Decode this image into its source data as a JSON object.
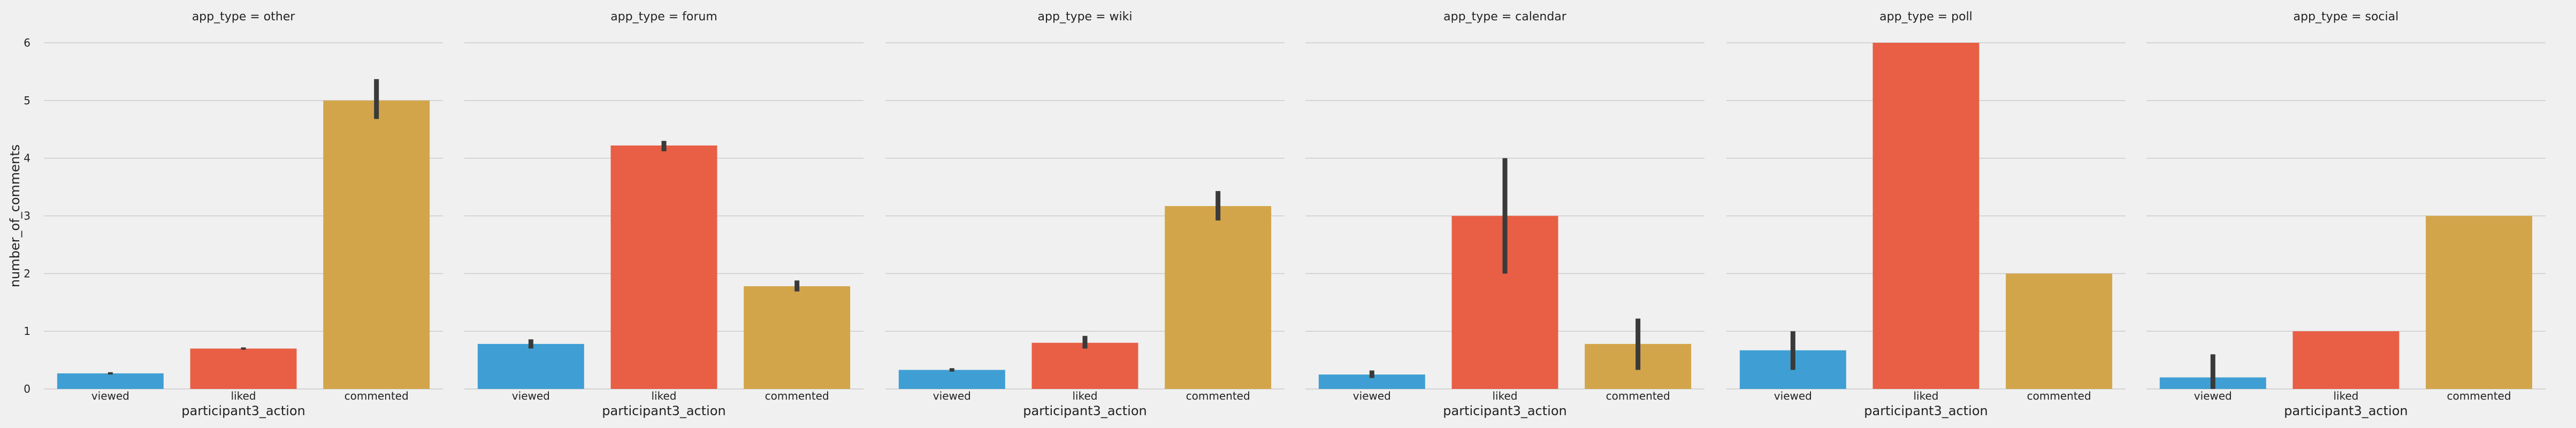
{
  "chart_data": {
    "type": "bar",
    "facet_variable": "app_type",
    "xlabel": "participant3_action",
    "ylabel": "number_of_comments",
    "ylim": [
      0,
      6
    ],
    "yticks": [
      0,
      1,
      2,
      3,
      4,
      5,
      6
    ],
    "categories": [
      "viewed",
      "liked",
      "commented"
    ],
    "colors": [
      "#3f9fd4",
      "#e85f45",
      "#d3a54a"
    ],
    "grid": true,
    "facets": [
      {
        "title": "app_type = other",
        "values": [
          0.27,
          0.7,
          5.0
        ],
        "errors": [
          [
            0.25,
            0.29
          ],
          [
            0.68,
            0.72
          ],
          [
            4.68,
            5.37
          ]
        ]
      },
      {
        "title": "app_type = forum",
        "values": [
          0.78,
          4.22,
          1.78
        ],
        "errors": [
          [
            0.7,
            0.86
          ],
          [
            4.12,
            4.3
          ],
          [
            1.69,
            1.88
          ]
        ]
      },
      {
        "title": "app_type = wiki",
        "values": [
          0.33,
          0.8,
          3.17
        ],
        "errors": [
          [
            0.3,
            0.36
          ],
          [
            0.7,
            0.92
          ],
          [
            2.92,
            3.43
          ]
        ]
      },
      {
        "title": "app_type = calendar",
        "values": [
          0.25,
          3.0,
          0.78
        ],
        "errors": [
          [
            0.19,
            0.32
          ],
          [
            2.0,
            4.0
          ],
          [
            0.33,
            1.22
          ]
        ]
      },
      {
        "title": "app_type = poll",
        "values": [
          0.67,
          6.0,
          2.0
        ],
        "errors": [
          [
            0.33,
            1.0
          ],
          null,
          null
        ]
      },
      {
        "title": "app_type = social",
        "values": [
          0.2,
          1.0,
          3.0
        ],
        "errors": [
          [
            0.0,
            0.6
          ],
          null,
          null
        ]
      }
    ]
  }
}
